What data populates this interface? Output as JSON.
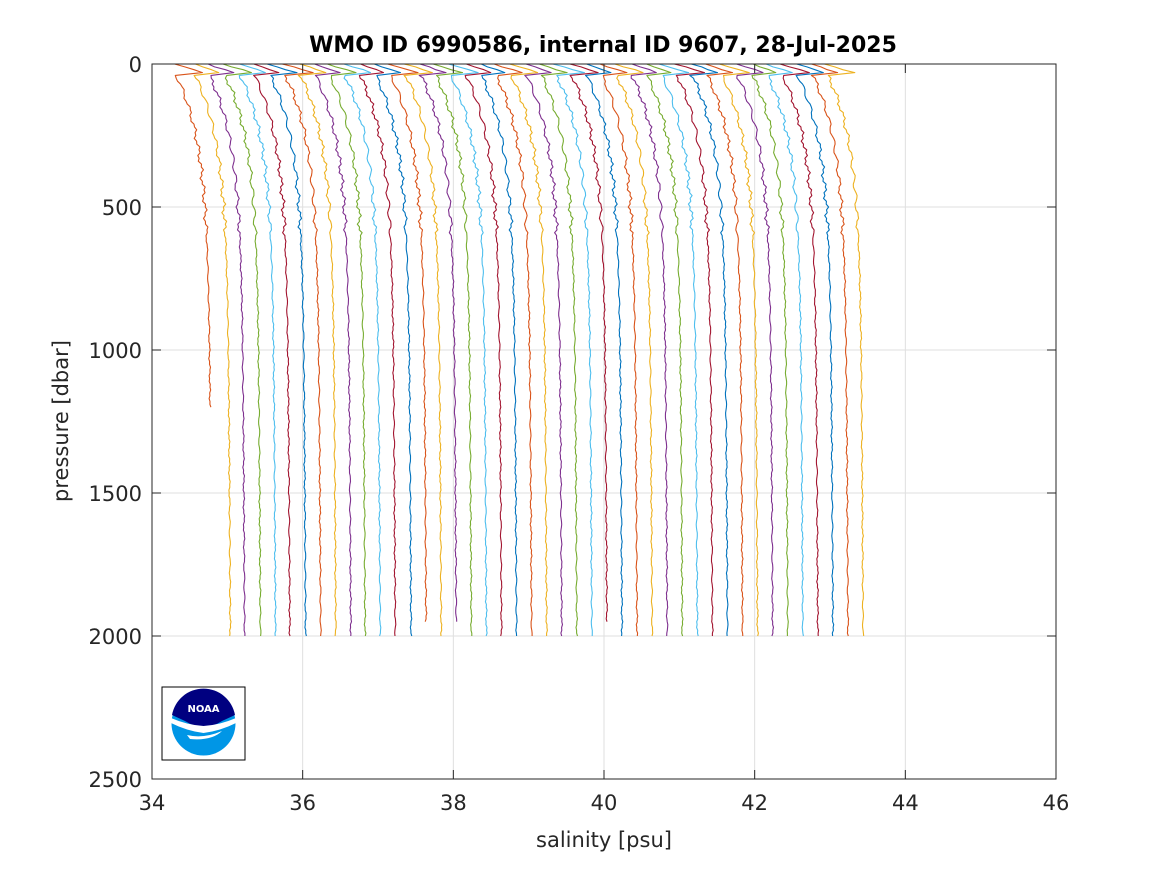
{
  "chart_data": {
    "type": "line",
    "title": "WMO ID 6990586, internal ID 9607, 28-Jul-2025",
    "xlabel": "salinity [psu]",
    "ylabel": "pressure [dbar]",
    "xlim": [
      34,
      46
    ],
    "ylim": [
      0,
      2500
    ],
    "y_reversed": true,
    "x_ticks": [
      34,
      36,
      38,
      40,
      42,
      44,
      46
    ],
    "y_ticks": [
      0,
      500,
      1000,
      1500,
      2000,
      2500
    ],
    "grid": true,
    "legend": "none",
    "colors": [
      "#0072BD",
      "#D95319",
      "#EDB120",
      "#7E2F8E",
      "#77AC30",
      "#4DBEEE",
      "#A2142F"
    ],
    "profile_offset_psu": 0.2,
    "logo": {
      "name": "noaa-logo-icon",
      "text": "NOAA",
      "placement": "bottom-left"
    },
    "series": [
      {
        "deep_x": 34.78,
        "max_p": 1200,
        "color": "#D95319"
      },
      {
        "deep_x": 35.03,
        "max_p": 2000,
        "color": "#EDB120"
      },
      {
        "deep_x": 35.22,
        "max_p": 2000,
        "color": "#7E2F8E"
      },
      {
        "deep_x": 35.43,
        "max_p": 2000,
        "color": "#77AC30"
      },
      {
        "deep_x": 35.63,
        "max_p": 2000,
        "color": "#4DBEEE"
      },
      {
        "deep_x": 35.82,
        "max_p": 2000,
        "color": "#A2142F"
      },
      {
        "deep_x": 36.03,
        "max_p": 2000,
        "color": "#0072BD"
      },
      {
        "deep_x": 36.23,
        "max_p": 2000,
        "color": "#D95319"
      },
      {
        "deep_x": 36.43,
        "max_p": 2000,
        "color": "#EDB120"
      },
      {
        "deep_x": 36.63,
        "max_p": 2000,
        "color": "#7E2F8E"
      },
      {
        "deep_x": 36.82,
        "max_p": 2000,
        "color": "#77AC30"
      },
      {
        "deep_x": 37.02,
        "max_p": 2000,
        "color": "#4DBEEE"
      },
      {
        "deep_x": 37.22,
        "max_p": 2000,
        "color": "#A2142F"
      },
      {
        "deep_x": 37.43,
        "max_p": 2000,
        "color": "#0072BD"
      },
      {
        "deep_x": 37.63,
        "max_p": 1950,
        "color": "#D95319"
      },
      {
        "deep_x": 37.83,
        "max_p": 2000,
        "color": "#EDB120"
      },
      {
        "deep_x": 38.03,
        "max_p": 1950,
        "color": "#7E2F8E"
      },
      {
        "deep_x": 38.23,
        "max_p": 2000,
        "color": "#77AC30"
      },
      {
        "deep_x": 38.43,
        "max_p": 2000,
        "color": "#4DBEEE"
      },
      {
        "deep_x": 38.63,
        "max_p": 2000,
        "color": "#A2142F"
      },
      {
        "deep_x": 38.83,
        "max_p": 2000,
        "color": "#0072BD"
      },
      {
        "deep_x": 39.03,
        "max_p": 2000,
        "color": "#D95319"
      },
      {
        "deep_x": 39.23,
        "max_p": 2000,
        "color": "#EDB120"
      },
      {
        "deep_x": 39.43,
        "max_p": 2000,
        "color": "#7E2F8E"
      },
      {
        "deep_x": 39.63,
        "max_p": 2000,
        "color": "#77AC30"
      },
      {
        "deep_x": 39.83,
        "max_p": 2000,
        "color": "#4DBEEE"
      },
      {
        "deep_x": 40.03,
        "max_p": 1950,
        "color": "#A2142F"
      },
      {
        "deep_x": 40.23,
        "max_p": 2000,
        "color": "#0072BD"
      },
      {
        "deep_x": 40.43,
        "max_p": 2000,
        "color": "#D95319"
      },
      {
        "deep_x": 40.63,
        "max_p": 2000,
        "color": "#EDB120"
      },
      {
        "deep_x": 40.83,
        "max_p": 2000,
        "color": "#7E2F8E"
      },
      {
        "deep_x": 41.03,
        "max_p": 2000,
        "color": "#77AC30"
      },
      {
        "deep_x": 41.23,
        "max_p": 2000,
        "color": "#4DBEEE"
      },
      {
        "deep_x": 41.43,
        "max_p": 2000,
        "color": "#A2142F"
      },
      {
        "deep_x": 41.63,
        "max_p": 2000,
        "color": "#0072BD"
      },
      {
        "deep_x": 41.83,
        "max_p": 2000,
        "color": "#D95319"
      },
      {
        "deep_x": 42.03,
        "max_p": 2000,
        "color": "#EDB120"
      },
      {
        "deep_x": 42.23,
        "max_p": 2000,
        "color": "#7E2F8E"
      },
      {
        "deep_x": 42.43,
        "max_p": 2000,
        "color": "#77AC30"
      },
      {
        "deep_x": 42.63,
        "max_p": 2000,
        "color": "#4DBEEE"
      },
      {
        "deep_x": 42.83,
        "max_p": 2000,
        "color": "#A2142F"
      },
      {
        "deep_x": 43.03,
        "max_p": 2000,
        "color": "#0072BD"
      },
      {
        "deep_x": 43.23,
        "max_p": 2000,
        "color": "#D95319"
      },
      {
        "deep_x": 43.43,
        "max_p": 2000,
        "color": "#EDB120"
      }
    ]
  }
}
